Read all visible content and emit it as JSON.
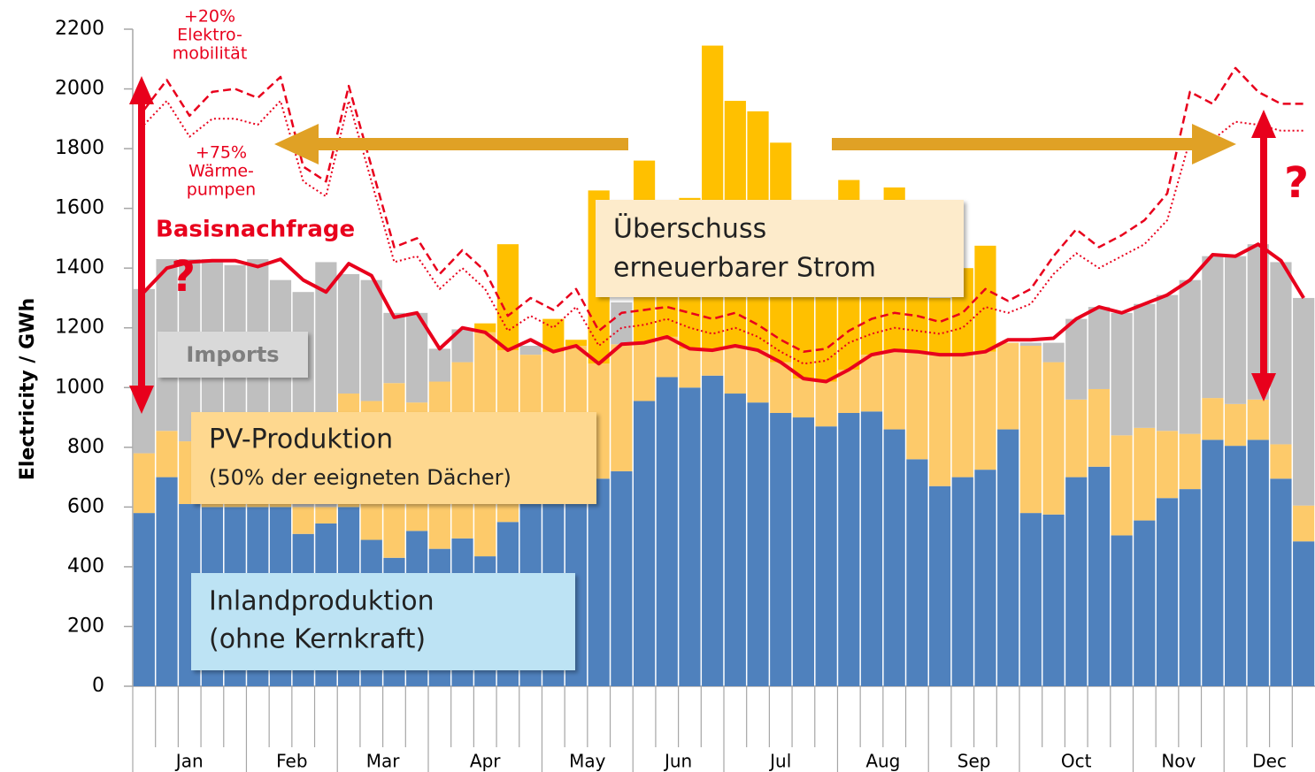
{
  "chart_data": {
    "type": "bar",
    "stacked": true,
    "y_label": "Electricity / GWh",
    "ylim": [
      0,
      2200
    ],
    "yticks": [
      0,
      200,
      400,
      600,
      800,
      1000,
      1200,
      1400,
      1600,
      1800,
      2000,
      2200
    ],
    "categories": [
      "Jan",
      null,
      null,
      null,
      null,
      "Feb",
      null,
      null,
      null,
      "Mar",
      null,
      null,
      null,
      "Apr",
      null,
      null,
      null,
      null,
      "May",
      null,
      null,
      null,
      "Jun",
      null,
      null,
      null,
      "Jul",
      null,
      null,
      null,
      null,
      "Aug",
      null,
      null,
      null,
      "Sep",
      null,
      null,
      null,
      "Oct",
      null,
      null,
      null,
      null,
      "Nov",
      null,
      null,
      null,
      "Dec",
      null,
      null,
      null
    ],
    "series": [
      {
        "label_lines": [
          "Inlandproduktion",
          "(ohne Kernkraft)"
        ],
        "color": "#4f81bd",
        "values": [
          580,
          700,
          610,
          600,
          600,
          600,
          600,
          510,
          545,
          600,
          490,
          430,
          520,
          460,
          495,
          435,
          550,
          610,
          620,
          650,
          695,
          720,
          955,
          1035,
          1000,
          1040,
          980,
          950,
          915,
          900,
          870,
          915,
          920,
          860,
          760,
          670,
          700,
          725,
          860,
          580,
          575,
          700,
          735,
          505,
          555,
          630,
          660,
          825,
          805,
          825,
          695,
          485
        ]
      },
      {
        "label_lines": [
          "PV-Produktion",
          "(50% der eeigneten Dächer)"
        ],
        "color": "#fdca6a",
        "values": [
          200,
          155,
          210,
          220,
          220,
          200,
          100,
          90,
          55,
          380,
          465,
          585,
          430,
          560,
          590,
          750,
          575,
          500,
          500,
          490,
          385,
          425,
          195,
          135,
          130,
          85,
          160,
          175,
          170,
          130,
          150,
          145,
          190,
          265,
          360,
          440,
          410,
          395,
          290,
          560,
          510,
          260,
          260,
          335,
          310,
          225,
          185,
          140,
          140,
          135,
          115,
          120
        ]
      },
      {
        "label_lines": [
          "Imports"
        ],
        "color": "#bfbfbf",
        "values": [
          550,
          575,
          610,
          610,
          590,
          630,
          660,
          720,
          820,
          400,
          405,
          235,
          300,
          110,
          110,
          0,
          0,
          30,
          0,
          0,
          0,
          140,
          0,
          0,
          0,
          0,
          0,
          0,
          0,
          0,
          0,
          0,
          0,
          0,
          0,
          0,
          0,
          0,
          0,
          10,
          65,
          270,
          275,
          410,
          415,
          455,
          515,
          475,
          495,
          520,
          610,
          695
        ]
      },
      {
        "label_lines": [
          "Überschuss",
          "erneuerbarer Strom"
        ],
        "color": "#ffc000",
        "values": [
          0,
          0,
          0,
          0,
          0,
          0,
          0,
          0,
          0,
          0,
          0,
          0,
          0,
          0,
          0,
          30,
          355,
          0,
          110,
          20,
          580,
          0,
          610,
          430,
          505,
          1020,
          820,
          800,
          735,
          420,
          580,
          635,
          490,
          545,
          480,
          190,
          290,
          355,
          0,
          0,
          0,
          0,
          0,
          0,
          0,
          0,
          0,
          0,
          0,
          0,
          0,
          0
        ]
      }
    ],
    "lines": [
      {
        "label_lines": [
          "Basisnachfrage"
        ],
        "color": "#e8001c",
        "style": "solid",
        "values": [
          1320,
          1400,
          1420,
          1425,
          1425,
          1405,
          1430,
          1360,
          1320,
          1415,
          1375,
          1235,
          1250,
          1130,
          1200,
          1185,
          1125,
          1160,
          1120,
          1140,
          1080,
          1145,
          1150,
          1170,
          1130,
          1125,
          1140,
          1125,
          1085,
          1030,
          1020,
          1060,
          1110,
          1125,
          1120,
          1110,
          1110,
          1120,
          1160,
          1160,
          1165,
          1230,
          1270,
          1250,
          1280,
          1310,
          1360,
          1445,
          1440,
          1480,
          1425,
          1300
        ]
      },
      {
        "label_lines": [
          "+75%",
          "Wärme-",
          "pumpen"
        ],
        "color": "#e8001c",
        "style": "dotted",
        "values": [
          1880,
          1960,
          1840,
          1900,
          1900,
          1880,
          1960,
          1690,
          1640,
          1960,
          1690,
          1420,
          1440,
          1330,
          1400,
          1330,
          1190,
          1240,
          1200,
          1270,
          1140,
          1200,
          1210,
          1230,
          1200,
          1180,
          1200,
          1170,
          1120,
          1080,
          1090,
          1150,
          1180,
          1200,
          1190,
          1180,
          1200,
          1270,
          1250,
          1280,
          1380,
          1450,
          1400,
          1440,
          1480,
          1560,
          1830,
          1830,
          1890,
          1880,
          1860,
          1860
        ]
      },
      {
        "label_lines": [
          "+20%",
          "Elektro-",
          "mobilität"
        ],
        "color": "#e8001c",
        "style": "dashed",
        "values": [
          1930,
          2030,
          1910,
          1990,
          2000,
          1970,
          2040,
          1740,
          1690,
          2010,
          1740,
          1470,
          1500,
          1380,
          1460,
          1390,
          1240,
          1300,
          1260,
          1330,
          1190,
          1250,
          1260,
          1270,
          1250,
          1230,
          1250,
          1210,
          1160,
          1120,
          1130,
          1190,
          1230,
          1250,
          1240,
          1220,
          1250,
          1330,
          1290,
          1330,
          1440,
          1530,
          1470,
          1510,
          1560,
          1650,
          1990,
          1950,
          2070,
          1990,
          1950,
          1950
        ]
      }
    ],
    "annotations": [
      "?",
      "?"
    ]
  }
}
